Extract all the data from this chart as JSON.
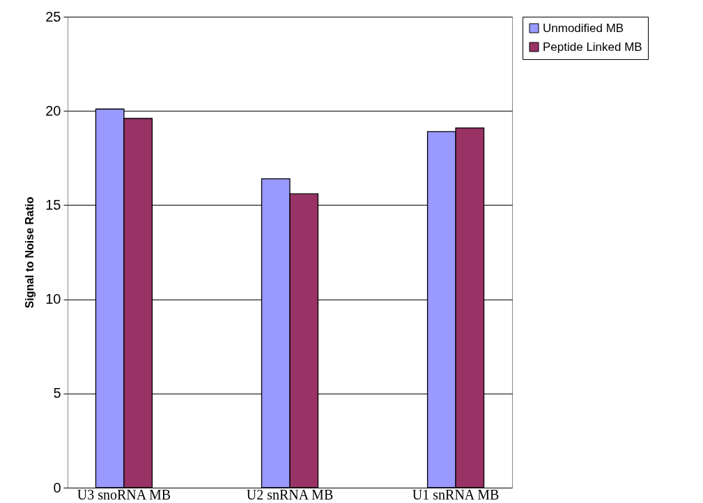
{
  "chart_data": {
    "type": "bar",
    "ylabel": "Signal to Noise Ratio",
    "categories": [
      "U3 snoRNA MB",
      "U2 snRNA MB",
      "U1 snRNA MB"
    ],
    "series": [
      {
        "name": "Unmodified MB",
        "color": "#9999ff",
        "values": [
          20.1,
          16.4,
          18.9
        ]
      },
      {
        "name": "Peptide Linked MB",
        "color": "#993366",
        "values": [
          19.6,
          15.6,
          19.1
        ]
      }
    ],
    "ylim": [
      0,
      25
    ],
    "yticks": [
      0,
      5,
      10,
      15,
      20,
      25
    ],
    "grid": "y",
    "legend": "right"
  }
}
